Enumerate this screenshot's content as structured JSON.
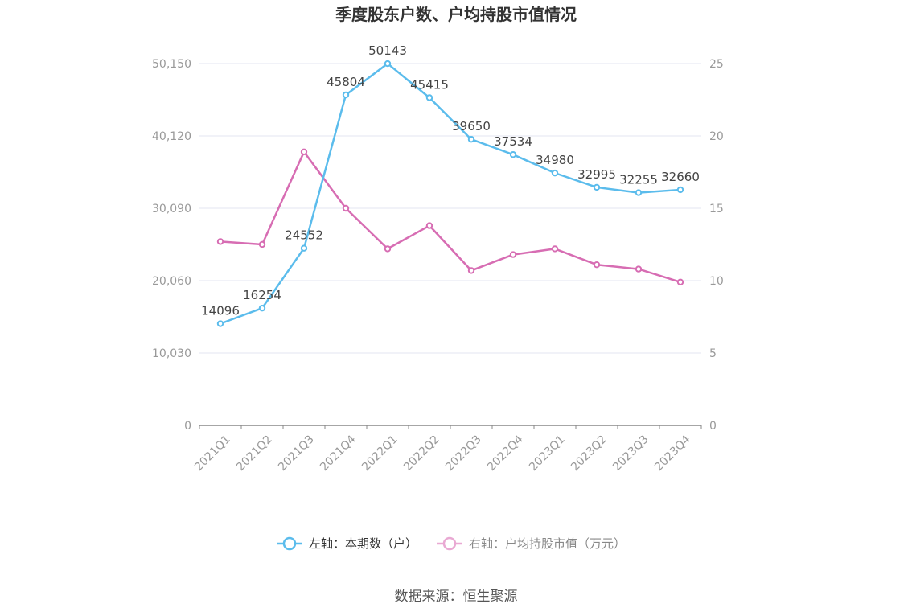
{
  "chart_data": {
    "type": "line",
    "title": "季度股东户数、户均持股市值情况",
    "categories": [
      "2021Q1",
      "2021Q2",
      "2021Q3",
      "2021Q4",
      "2022Q1",
      "2022Q2",
      "2022Q3",
      "2022Q4",
      "2023Q1",
      "2023Q2",
      "2023Q3",
      "2023Q4"
    ],
    "left_axis": {
      "min": 0,
      "max": 50150,
      "ticks": [
        "0",
        "10,030",
        "20,060",
        "30,090",
        "40,120",
        "50,150"
      ]
    },
    "right_axis": {
      "min": 0,
      "max": 25,
      "ticks": [
        "0",
        "5",
        "10",
        "15",
        "20",
        "25"
      ]
    },
    "series": [
      {
        "name": "左轴：本期数（户）",
        "axis": "left",
        "color": "#5bbcec",
        "values": [
          14096,
          16254,
          24552,
          45804,
          50143,
          45415,
          39650,
          37534,
          34980,
          32995,
          32255,
          32660
        ],
        "labels": [
          "14096",
          "16254",
          "24552",
          "45804",
          "50143",
          "45415",
          "39650",
          "37534",
          "34980",
          "32995",
          "32255",
          "32660"
        ]
      },
      {
        "name": "右轴：户均持股市值（万元）",
        "axis": "right",
        "color": "#d76db3",
        "values": [
          12.7,
          12.5,
          18.9,
          15.0,
          12.2,
          13.8,
          10.7,
          11.8,
          12.2,
          11.1,
          10.8,
          9.9
        ]
      }
    ],
    "grid": true,
    "legend_position": "bottom"
  },
  "source": "数据来源：恒生聚源"
}
